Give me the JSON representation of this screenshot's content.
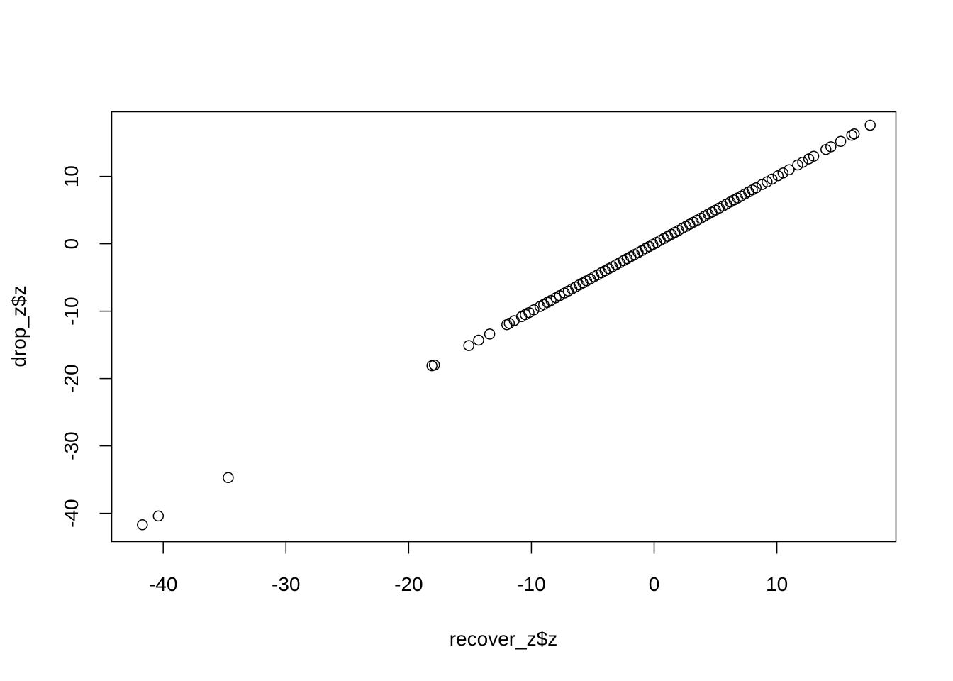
{
  "chart_data": {
    "type": "scatter",
    "title": "",
    "xlabel": "recover_z$z",
    "ylabel": "drop_z$z",
    "xlim": [
      -44.2,
      19.7
    ],
    "ylim": [
      -44.2,
      19.6
    ],
    "xticks": [
      -40,
      -30,
      -20,
      -10,
      0,
      10
    ],
    "yticks": [
      -40,
      -30,
      -20,
      -10,
      0,
      10
    ],
    "grid": false,
    "point_color": "#000000",
    "points": [
      [
        -41.7,
        -41.7
      ],
      [
        -40.4,
        -40.4
      ],
      [
        -34.7,
        -34.7
      ],
      [
        -18.1,
        -18.1
      ],
      [
        -17.9,
        -18.0
      ],
      [
        -15.1,
        -15.1
      ],
      [
        -14.3,
        -14.3
      ],
      [
        -13.4,
        -13.4
      ],
      [
        -12.0,
        -12.0
      ],
      [
        -11.8,
        -11.8
      ],
      [
        -11.4,
        -11.4
      ],
      [
        -10.8,
        -10.8
      ],
      [
        -10.5,
        -10.5
      ],
      [
        -10.2,
        -10.2
      ],
      [
        -9.8,
        -9.8
      ],
      [
        -9.3,
        -9.3
      ],
      [
        -9.0,
        -9.0
      ],
      [
        -8.7,
        -8.7
      ],
      [
        -8.4,
        -8.4
      ],
      [
        -8.0,
        -8.0
      ],
      [
        -7.7,
        -7.7
      ],
      [
        -7.3,
        -7.3
      ],
      [
        -7.0,
        -7.0
      ],
      [
        -6.7,
        -6.7
      ],
      [
        -6.4,
        -6.4
      ],
      [
        -6.1,
        -6.1
      ],
      [
        -5.8,
        -5.8
      ],
      [
        -5.5,
        -5.5
      ],
      [
        -5.2,
        -5.2
      ],
      [
        -4.9,
        -4.9
      ],
      [
        -4.6,
        -4.6
      ],
      [
        -4.3,
        -4.3
      ],
      [
        -4.0,
        -4.0
      ],
      [
        -3.7,
        -3.7
      ],
      [
        -3.4,
        -3.4
      ],
      [
        -3.1,
        -3.1
      ],
      [
        -2.8,
        -2.8
      ],
      [
        -2.5,
        -2.5
      ],
      [
        -2.2,
        -2.2
      ],
      [
        -1.9,
        -1.9
      ],
      [
        -1.6,
        -1.6
      ],
      [
        -1.3,
        -1.3
      ],
      [
        -1.0,
        -1.0
      ],
      [
        -0.7,
        -0.7
      ],
      [
        -0.4,
        -0.4
      ],
      [
        -0.1,
        -0.1
      ],
      [
        0.2,
        0.2
      ],
      [
        0.5,
        0.5
      ],
      [
        0.8,
        0.8
      ],
      [
        1.1,
        1.1
      ],
      [
        1.4,
        1.4
      ],
      [
        1.7,
        1.7
      ],
      [
        2.0,
        2.0
      ],
      [
        2.3,
        2.3
      ],
      [
        2.6,
        2.6
      ],
      [
        2.9,
        2.9
      ],
      [
        3.2,
        3.2
      ],
      [
        3.5,
        3.5
      ],
      [
        3.8,
        3.8
      ],
      [
        4.1,
        4.1
      ],
      [
        4.4,
        4.4
      ],
      [
        4.7,
        4.7
      ],
      [
        5.0,
        5.0
      ],
      [
        5.3,
        5.3
      ],
      [
        5.6,
        5.6
      ],
      [
        5.9,
        5.9
      ],
      [
        6.2,
        6.2
      ],
      [
        6.5,
        6.5
      ],
      [
        6.8,
        6.8
      ],
      [
        7.1,
        7.1
      ],
      [
        7.4,
        7.4
      ],
      [
        7.7,
        7.7
      ],
      [
        8.0,
        8.0
      ],
      [
        8.3,
        8.3
      ],
      [
        8.8,
        8.8
      ],
      [
        9.2,
        9.2
      ],
      [
        9.6,
        9.6
      ],
      [
        10.1,
        10.1
      ],
      [
        10.5,
        10.5
      ],
      [
        11.0,
        11.0
      ],
      [
        11.7,
        11.7
      ],
      [
        12.1,
        12.1
      ],
      [
        12.6,
        12.6
      ],
      [
        13.0,
        13.0
      ],
      [
        14.0,
        14.0
      ],
      [
        14.4,
        14.4
      ],
      [
        15.2,
        15.2
      ],
      [
        16.1,
        16.1
      ],
      [
        16.3,
        16.3
      ],
      [
        17.6,
        17.6
      ]
    ]
  }
}
